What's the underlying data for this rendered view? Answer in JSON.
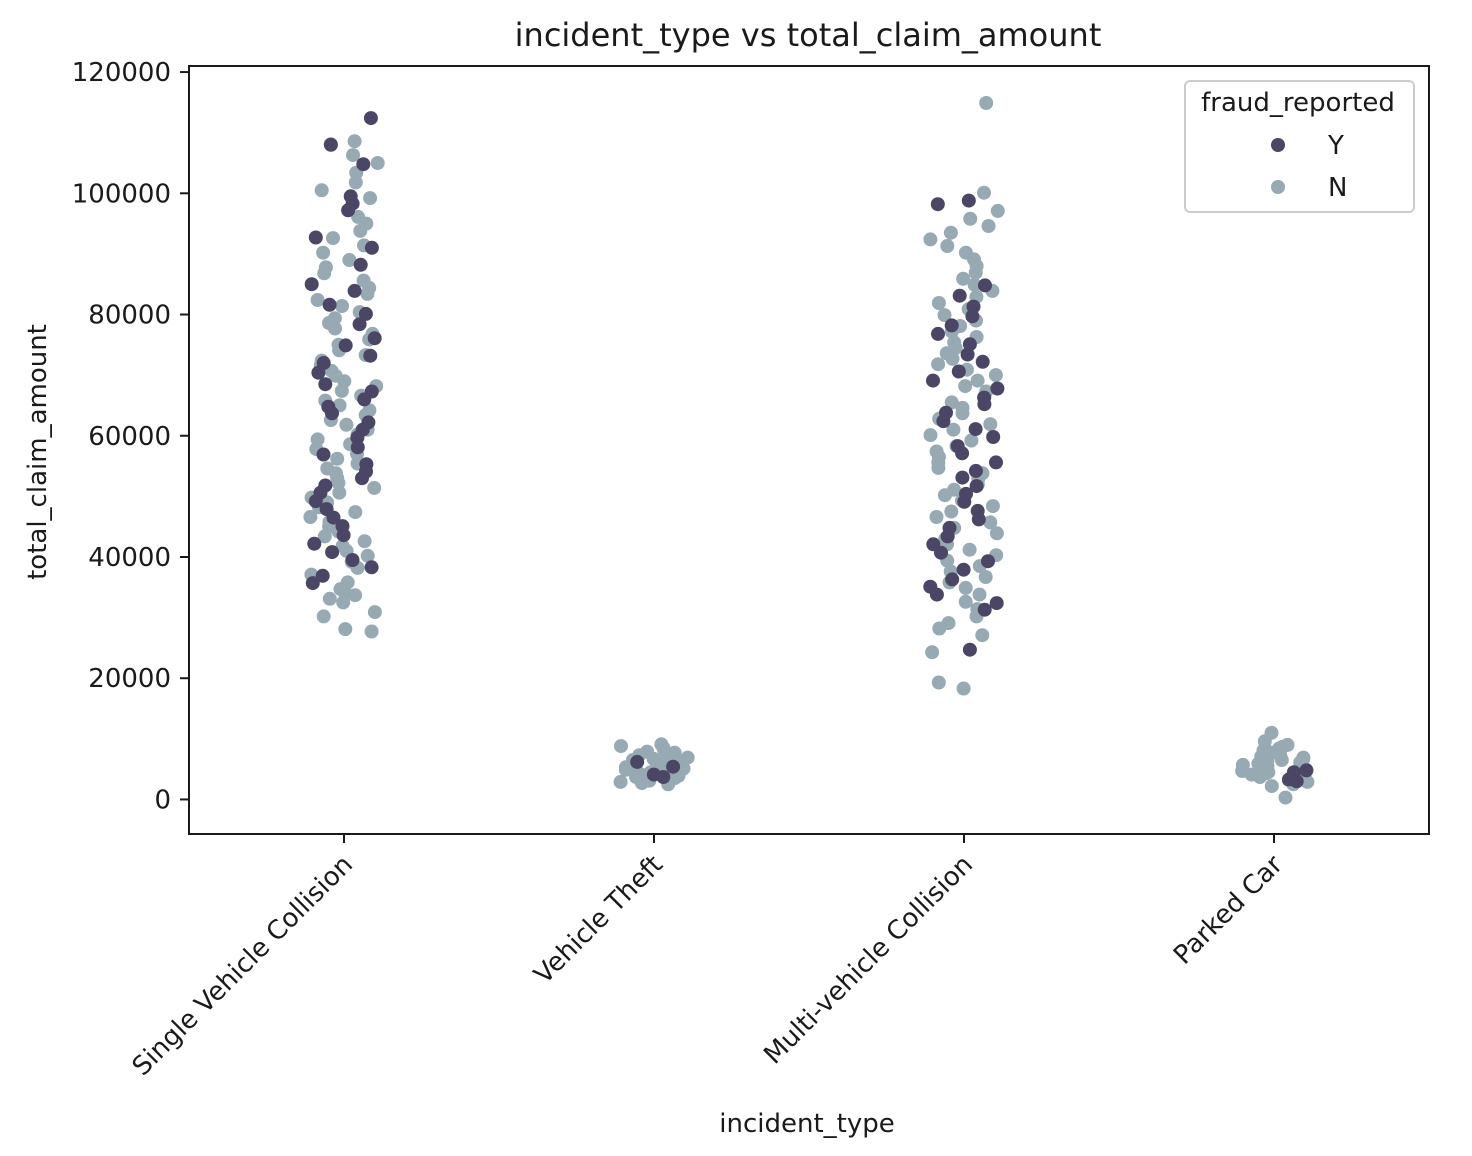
{
  "chart_data": {
    "type": "scatter",
    "title": "incident_type vs total_claim_amount",
    "xlabel": "incident_type",
    "ylabel": "total_claim_amount",
    "categories": [
      "Single Vehicle Collision",
      "Vehicle Theft",
      "Multi-vehicle Collision",
      "Parked Car"
    ],
    "yticks": [
      0,
      20000,
      40000,
      60000,
      80000,
      100000,
      120000
    ],
    "ylim": [
      -5700,
      121000
    ],
    "grid": false,
    "legend": {
      "title": "fraud_reported",
      "position": "top-right"
    },
    "series": [
      {
        "name": "Y",
        "color": "#4b4566",
        "points": [
          {
            "category": "Single Vehicle Collision",
            "values": [
              112400,
              108000,
              104800,
              99500,
              98300,
              97200,
              92700,
              91000,
              88200,
              85000,
              83900,
              81600,
              80100,
              78400,
              76100,
              74900,
              73200,
              72000,
              70400,
              68500,
              67300,
              66000,
              64800,
              63700,
              62200,
              61000,
              59700,
              58100,
              56900,
              55300,
              54100,
              53000,
              51800,
              50600,
              49200,
              47900,
              46500,
              45100,
              43600,
              42200,
              40800,
              39500,
              38300,
              36900,
              35700
            ]
          },
          {
            "category": "Vehicle Theft",
            "values": [
              6200,
              5400,
              4100,
              3700
            ]
          },
          {
            "category": "Multi-vehicle Collision",
            "values": [
              98800,
              98200,
              84800,
              83100,
              81300,
              79700,
              78200,
              76800,
              75100,
              73400,
              72200,
              70600,
              69100,
              67800,
              66300,
              65200,
              63800,
              62400,
              61100,
              59800,
              58300,
              57100,
              55600,
              54200,
              53100,
              51700,
              50400,
              49100,
              47600,
              46200,
              44800,
              43400,
              42100,
              40700,
              39300,
              37900,
              36300,
              35100,
              33800,
              32400,
              31300,
              24700
            ]
          },
          {
            "category": "Parked Car",
            "values": [
              4800,
              4500,
              3300,
              3000
            ]
          }
        ]
      },
      {
        "name": "N",
        "color": "#97a9b2",
        "points": [
          {
            "category": "Single Vehicle Collision",
            "values": [
              108600,
              108100,
              106300,
              105000,
              103400,
              101800,
              100500,
              99200,
              96100,
              95000,
              93800,
              92600,
              91400,
              90200,
              89000,
              87800,
              86800,
              85600,
              84400,
              83400,
              82400,
              81400,
              80400,
              79400,
              78600,
              77700,
              76800,
              75900,
              75000,
              74100,
              73300,
              72400,
              71600,
              70700,
              69900,
              69000,
              68200,
              67400,
              66600,
              65800,
              65000,
              64200,
              63400,
              62600,
              61800,
              61000,
              60200,
              59400,
              58600,
              57800,
              57000,
              56200,
              55400,
              54600,
              53800,
              53000,
              52200,
              51400,
              50600,
              49800,
              49000,
              48200,
              47400,
              46600,
              45800,
              45000,
              44200,
              43400,
              42600,
              41800,
              41000,
              40200,
              39200,
              38200,
              37100,
              35800,
              34700,
              34200,
              33700,
              33100,
              32500,
              30900,
              30200,
              28100,
              27700
            ]
          },
          {
            "category": "Vehicle Theft",
            "values": [
              9100,
              8800,
              8500,
              8200,
              7900,
              7700,
              7500,
              7300,
              7100,
              6900,
              6700,
              6500,
              6300,
              6100,
              5900,
              5700,
              5500,
              5300,
              5100,
              4900,
              4700,
              4500,
              4300,
              4100,
              3900,
              3700,
              3500,
              3300,
              3100,
              2900,
              2700,
              2500
            ]
          },
          {
            "category": "Multi-vehicle Collision",
            "values": [
              114900,
              100100,
              97100,
              95800,
              94600,
              93500,
              92400,
              91300,
              90200,
              89100,
              88000,
              86900,
              85900,
              84900,
              83900,
              82900,
              81900,
              80900,
              79900,
              79000,
              78100,
              77200,
              76300,
              75400,
              74500,
              73600,
              72700,
              71800,
              70900,
              70000,
              69100,
              68200,
              67300,
              66400,
              65500,
              64600,
              63700,
              62800,
              61900,
              61000,
              60100,
              59200,
              58300,
              57400,
              56500,
              55600,
              54700,
              53800,
              52900,
              52000,
              51100,
              50200,
              49300,
              48400,
              47500,
              46600,
              45700,
              44800,
              43900,
              43000,
              42100,
              41200,
              40300,
              39400,
              38500,
              37600,
              36700,
              35800,
              34900,
              33800,
              32600,
              31400,
              30200,
              29100,
              28200,
              27100,
              24300,
              19300,
              18300
            ]
          },
          {
            "category": "Parked Car",
            "values": [
              11000,
              9600,
              9000,
              8700,
              8400,
              8100,
              7800,
              7500,
              7300,
              7100,
              6900,
              6700,
              6500,
              6300,
              6100,
              5900,
              5700,
              5500,
              5300,
              5100,
              4900,
              4700,
              4500,
              4300,
              4100,
              3900,
              3700,
              3500,
              3200,
              2900,
              2500,
              2200,
              300
            ]
          }
        ]
      }
    ]
  }
}
